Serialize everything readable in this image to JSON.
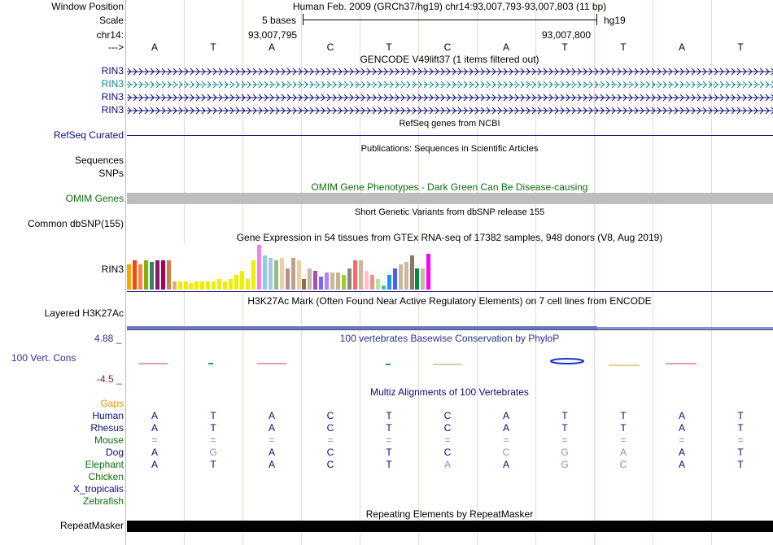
{
  "labels": {
    "window_position": "Window Position",
    "scale": "Scale",
    "chrom": "chr14:",
    "strand": "--->",
    "rin3": "RIN3",
    "refseq": "RefSeq Curated",
    "sequences": "Sequences",
    "snps": "SNPs",
    "omim": "OMIM Genes",
    "dbsnp": "Common dbSNP(155)",
    "gtex": "RIN3",
    "h3k27ac": "Layered H3K27Ac",
    "cons_max": "4.88 _",
    "cons": "100 Vert. Cons",
    "cons_min": "-4.5 _",
    "gaps": "Gaps",
    "species": [
      "Human",
      "Rhesus",
      "Mouse",
      "Dog",
      "Elephant",
      "Chicken",
      "X_tropicalis",
      "Zebrafish"
    ],
    "repeatmasker": "RepeatMasker"
  },
  "header": {
    "position": "Human Feb. 2009 (GRCh37/hg19)   chr14:93,007,793-93,007,803 (11 bp)",
    "scale_text": "5 bases",
    "assembly": "hg19",
    "pos_left": "93,007,795",
    "pos_right": "93,007,800"
  },
  "titles": {
    "gencode": "GENCODE V49lift37 (1 items filtered out)",
    "refseq": "RefSeq genes from NCBI",
    "publications": "Publications: Sequences in Scientific Articles",
    "omim": "OMIM Gene Phenotypes - Dark Green Can Be Disease-causing",
    "dbsnp": "Short Genetic Variants from dbSNP release 155",
    "gtex": "Gene Expression in 54 tissues from GTEx RNA-seq of 17382 samples, 948 donors (V8, Aug 2019)",
    "h3k27ac": "H3K27Ac Mark (Often Found Near Active Regulatory Elements) on 7 cell lines from ENCODE",
    "phylop": "100 vertebrates Basewise Conservation by PhyloP",
    "multiz": "Multiz Alignments of 100 Vertebrates",
    "repeatmasker": "Repeating Elements by RepeatMasker"
  },
  "bases": [
    "A",
    "T",
    "A",
    "C",
    "T",
    "C",
    "A",
    "T",
    "T",
    "A",
    "T"
  ],
  "alignment": {
    "Human": [
      "A",
      "T",
      "A",
      "C",
      "T",
      "C",
      "A",
      "T",
      "T",
      "A",
      "T"
    ],
    "Rhesus": [
      "A",
      "T",
      "A",
      "C",
      "T",
      "C",
      "A",
      "T",
      "T",
      "A",
      "T"
    ],
    "Mouse": [
      "=",
      "=",
      "=",
      "=",
      "=",
      "=",
      "=",
      "=",
      "=",
      "=",
      "="
    ],
    "Dog": [
      "A",
      "G",
      "A",
      "C",
      "T",
      "C",
      "C",
      "G",
      "A",
      "A",
      "T"
    ],
    "Elephant": [
      "A",
      "T",
      "A",
      "C",
      "T",
      "A",
      "A",
      "G",
      "C",
      "A",
      "T"
    ]
  },
  "alignment_dim": {
    "Dog": [
      false,
      true,
      false,
      false,
      false,
      false,
      true,
      true,
      true,
      false,
      false
    ],
    "Elephant": [
      false,
      false,
      false,
      false,
      false,
      true,
      false,
      true,
      true,
      false,
      false
    ]
  },
  "colors": {
    "gene": "#0c0c78",
    "gene_highlight": "#12858c",
    "omim_bar": "#bebebe",
    "gaps": "#e79300",
    "cons_max": "#2e2e8c",
    "cons_min": "#8c2020",
    "species_text": "#0c0c78",
    "species_green": "#0c6e0c"
  },
  "gtex_values": [
    12,
    14,
    12,
    14,
    13,
    14,
    14,
    14,
    4,
    4,
    4,
    3,
    4,
    4,
    4,
    4,
    5,
    4,
    5,
    7,
    9,
    5,
    14,
    21,
    16,
    15,
    14,
    15,
    10,
    15,
    14,
    5,
    10,
    9,
    6,
    8,
    8,
    8,
    7,
    10,
    14,
    14,
    9,
    7,
    5,
    2,
    7,
    10,
    12,
    13,
    16,
    10,
    10,
    17
  ],
  "gtex_colors": [
    "#ffa500",
    "#ff4500",
    "#ff7f50",
    "#8ab000",
    "#2e8b57",
    "#8b1a6b",
    "#aa0055",
    "#cd853f",
    "#d8b080",
    "#eeee00",
    "#eeee00",
    "#eeee00",
    "#eeee00",
    "#eeee00",
    "#eeee00",
    "#eeee00",
    "#eeee00",
    "#eeee00",
    "#eeee00",
    "#eeee00",
    "#eeee00",
    "#eeee00",
    "#eeee00",
    "#ee82ee",
    "#87ceeb",
    "#b0c4de",
    "#8fbc8f",
    "#eecfa1",
    "#bc8f8f",
    "#bca090",
    "#eecfa1",
    "#8b6f47",
    "#cdb79e",
    "#a94eb0",
    "#7a67ee",
    "#ab82ff",
    "#cdb79e",
    "#c8b28c",
    "#9acd32",
    "#8b8878",
    "#ff6666",
    "#cdb79e",
    "#ffc0cb",
    "#ee9090",
    "#b0e890",
    "#40c0a0",
    "#1e90ff",
    "#4060ff",
    "#cdb79e",
    "#cdb79e",
    "#8b7765",
    "#008b45",
    "#cdb79e",
    "#ff00ff"
  ]
}
